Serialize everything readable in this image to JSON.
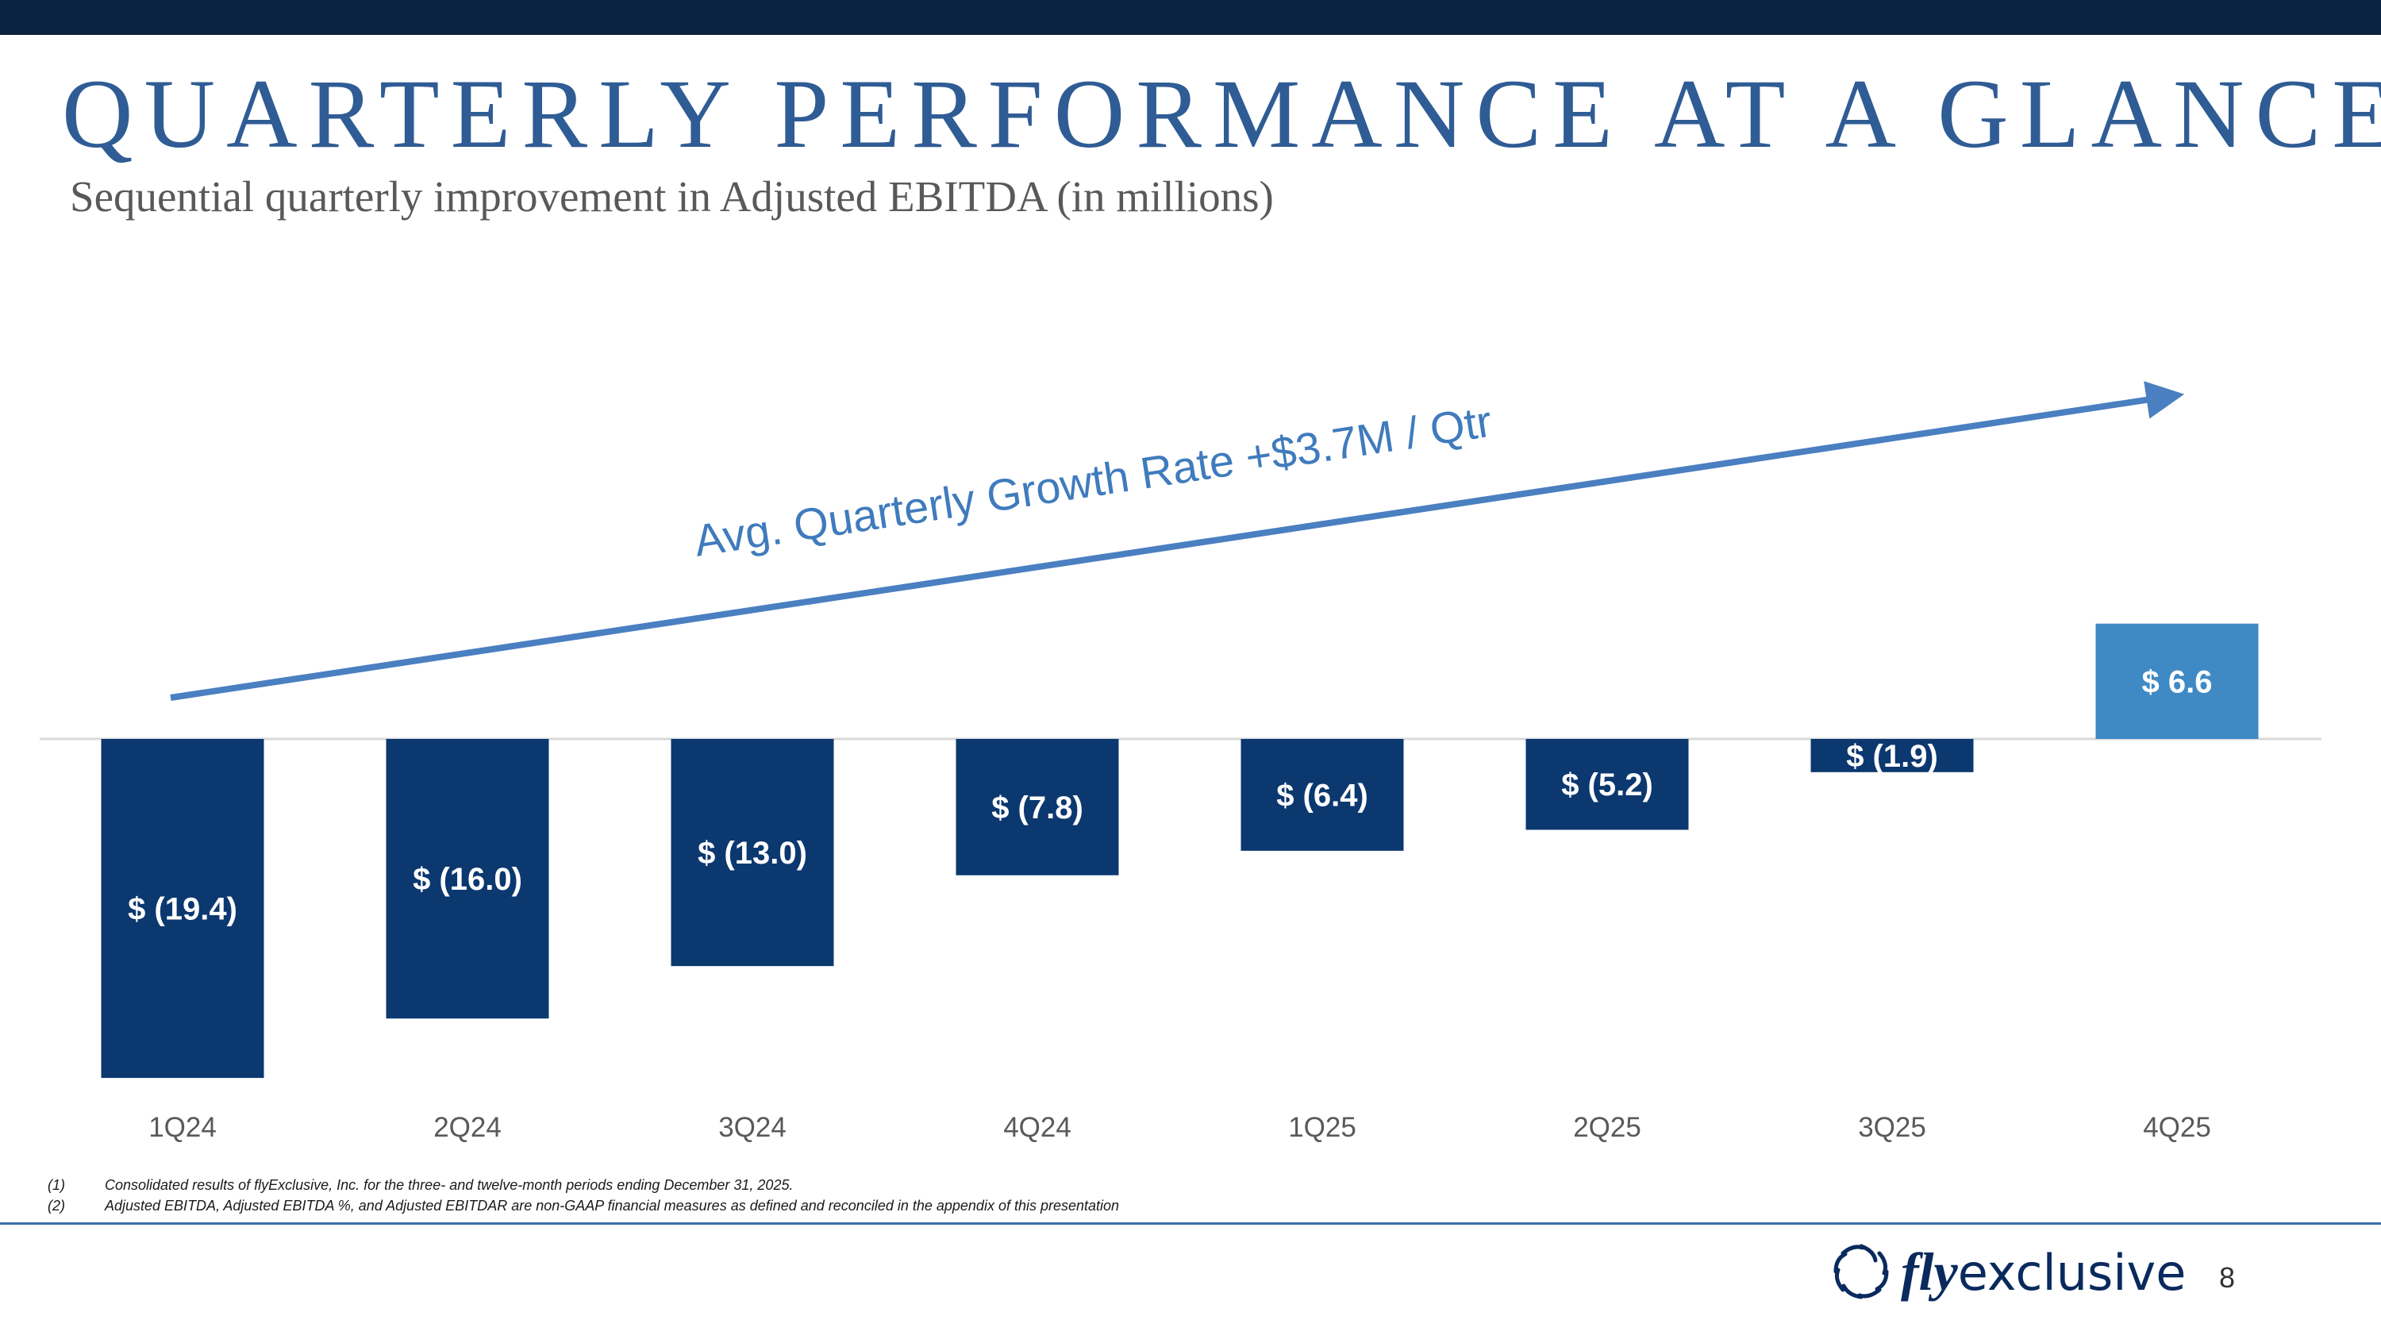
{
  "slide": {
    "title": "QUARTERLY PERFORMANCE AT A GLANCE",
    "subtitle": "Sequential quarterly improvement in Adjusted EBITDA (in millions)",
    "page_number": "8"
  },
  "colors": {
    "top_bar": "#0a2240",
    "title": "#2f5c94",
    "negative_bar": "#0c3870",
    "positive_bar": "#3f8ac5",
    "trend_arrow": "#4a7fc1",
    "divider": "#3d6fa8"
  },
  "footnotes": [
    {
      "num": "(1)",
      "text": "Consolidated results of flyExclusive, Inc. for the three- and twelve-month periods ending December 31, 2025."
    },
    {
      "num": "(2)",
      "text": "Adjusted EBITDA, Adjusted EBITDA %, and Adjusted EBITDAR are non-GAAP financial measures as defined and reconciled in the appendix of this presentation"
    }
  ],
  "logo": {
    "fly": "fly",
    "exclusive": "exclusive",
    "icon": "turbine-swirl-icon"
  },
  "chart_data": {
    "type": "bar",
    "title": "Sequential quarterly improvement in Adjusted EBITDA (in millions)",
    "categories": [
      "1Q24",
      "2Q24",
      "3Q24",
      "4Q24",
      "1Q25",
      "2Q25",
      "3Q25",
      "4Q25"
    ],
    "values": [
      -19.4,
      -16.0,
      -13.0,
      -7.8,
      -6.4,
      -5.2,
      -1.9,
      6.6
    ],
    "data_labels": [
      "$ (19.4)",
      "$ (16.0)",
      "$ (13.0)",
      "$ (7.8)",
      "$ (6.4)",
      "$ (5.2)",
      "$ (1.9)",
      "$ 6.6"
    ],
    "xlabel": "",
    "ylabel": "",
    "ylim": [
      -19.4,
      6.6
    ],
    "grid": false,
    "annotation": "Avg. Quarterly Growth Rate +$3.7M / Qtr"
  }
}
